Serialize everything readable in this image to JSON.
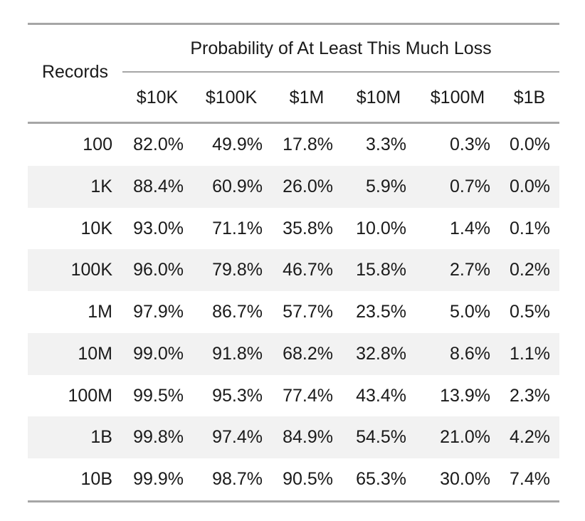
{
  "chart_data": {
    "type": "table",
    "row_header": "Records",
    "spanner": "Probability of At Least This Much Loss",
    "columns": [
      "$10K",
      "$100K",
      "$1M",
      "$10M",
      "$100M",
      "$1B"
    ],
    "rows": [
      {
        "label": "100",
        "values": [
          "82.0%",
          "49.9%",
          "17.8%",
          "3.3%",
          "0.3%",
          "0.0%"
        ]
      },
      {
        "label": "1K",
        "values": [
          "88.4%",
          "60.9%",
          "26.0%",
          "5.9%",
          "0.7%",
          "0.0%"
        ]
      },
      {
        "label": "10K",
        "values": [
          "93.0%",
          "71.1%",
          "35.8%",
          "10.0%",
          "1.4%",
          "0.1%"
        ]
      },
      {
        "label": "100K",
        "values": [
          "96.0%",
          "79.8%",
          "46.7%",
          "15.8%",
          "2.7%",
          "0.2%"
        ]
      },
      {
        "label": "1M",
        "values": [
          "97.9%",
          "86.7%",
          "57.7%",
          "23.5%",
          "5.0%",
          "0.5%"
        ]
      },
      {
        "label": "10M",
        "values": [
          "99.0%",
          "91.8%",
          "68.2%",
          "32.8%",
          "8.6%",
          "1.1%"
        ]
      },
      {
        "label": "100M",
        "values": [
          "99.5%",
          "95.3%",
          "77.4%",
          "43.4%",
          "13.9%",
          "2.3%"
        ]
      },
      {
        "label": "1B",
        "values": [
          "99.8%",
          "97.4%",
          "84.9%",
          "54.5%",
          "21.0%",
          "4.2%"
        ]
      },
      {
        "label": "10B",
        "values": [
          "99.9%",
          "98.7%",
          "90.5%",
          "65.3%",
          "30.0%",
          "7.4%"
        ]
      }
    ],
    "striped_rows": true,
    "stripe_color": "#f2f2f2",
    "rule_color": "#a6a6a6"
  }
}
